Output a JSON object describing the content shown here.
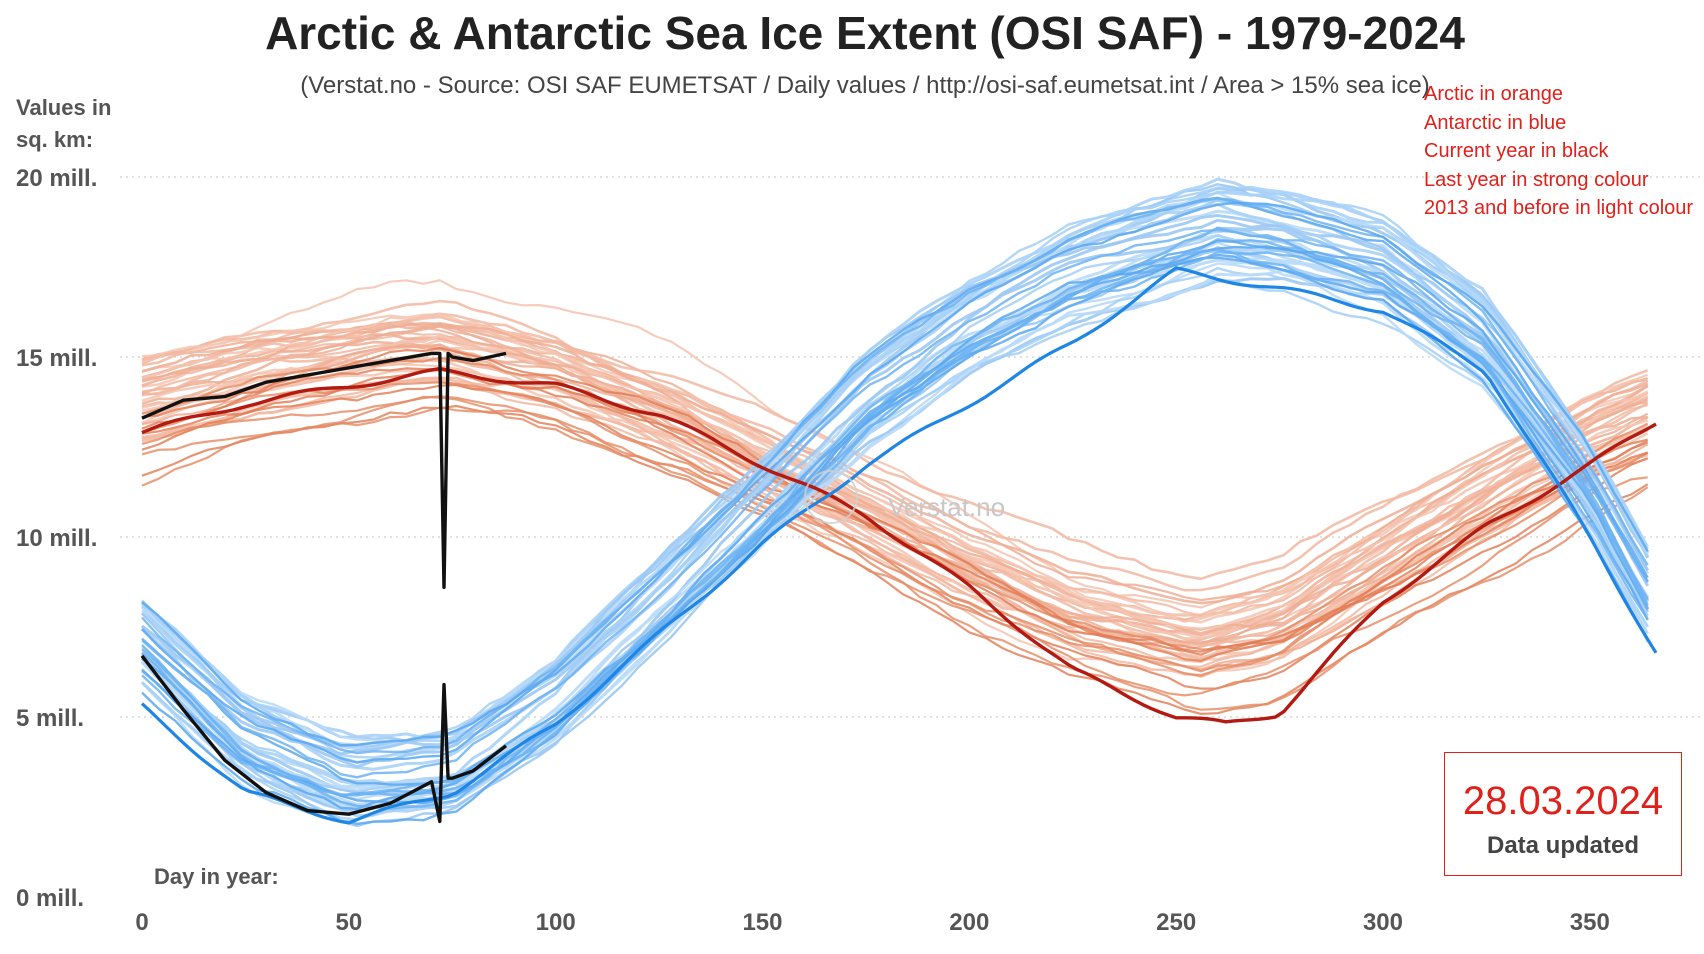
{
  "title": "Arctic & Antarctic Sea Ice Extent (OSI SAF) - 1979-2024",
  "subtitle": "(Verstat.no - Source: OSI SAF EUMETSAT / Daily values / http://osi-saf.eumetsat.int / Area > 15% sea ice)",
  "ylabel": "Values in sq. km:",
  "xlabel": "Day in year:",
  "legend": [
    "Arctic in orange",
    "Antarctic in blue",
    "Current year in black",
    "Last year in strong colour",
    "2013 and before in light colour"
  ],
  "watermark": "Verstat.no",
  "update": {
    "date": "28.03.2024",
    "label": "Data updated"
  },
  "colors": {
    "arctic_light": "#f2b9a2",
    "arctic_strong": "#e27a52",
    "arctic_last_year": "#b31b12",
    "antarctic_light": "#a9d1f7",
    "antarctic_strong": "#5aa8f0",
    "antarctic_last_year": "#1f86e6",
    "current_year": "#111111",
    "legend_text": "#e0201a"
  },
  "chart_data": {
    "type": "line",
    "title": "Arctic & Antarctic Sea Ice Extent (OSI SAF) - 1979-2024",
    "xlabel": "Day in year:",
    "ylabel": "Values in sq. km:",
    "xlim": [
      0,
      366
    ],
    "ylim": [
      0,
      20
    ],
    "x_ticks": [
      0,
      50,
      100,
      150,
      200,
      250,
      300,
      350
    ],
    "y_ticks": [
      0,
      5,
      10,
      15,
      20
    ],
    "y_tick_labels": [
      "0 mill.",
      "5 mill.",
      "10 mill.",
      "15 mill.",
      "20 mill."
    ],
    "grid": "horizontal dotted",
    "legend_position": "top-right",
    "series": [
      {
        "name": "Arctic 2023",
        "x": [
          0,
          25,
          50,
          72,
          100,
          125,
          150,
          175,
          200,
          225,
          250,
          262,
          275,
          300,
          325,
          350,
          366
        ],
        "values": [
          12.9,
          13.7,
          14.2,
          14.6,
          14.2,
          13.4,
          12.0,
          10.6,
          8.6,
          6.3,
          5.0,
          4.8,
          5.1,
          8.2,
          10.3,
          12.0,
          13.2
        ]
      },
      {
        "name": "Arctic 2024",
        "x": [
          0,
          10,
          20,
          30,
          40,
          50,
          60,
          70,
          72,
          73,
          74,
          75,
          80,
          88
        ],
        "values": [
          13.3,
          13.8,
          13.9,
          14.3,
          14.5,
          14.7,
          14.9,
          15.1,
          15.1,
          8.6,
          15.1,
          15.0,
          14.9,
          15.1
        ]
      },
      {
        "name": "Antarctic 2023",
        "x": [
          0,
          25,
          50,
          75,
          100,
          125,
          150,
          175,
          200,
          225,
          250,
          275,
          300,
          325,
          350,
          366
        ],
        "values": [
          5.3,
          2.9,
          2.1,
          2.9,
          4.8,
          7.3,
          9.8,
          12.0,
          13.7,
          15.4,
          17.4,
          16.9,
          16.3,
          14.6,
          10.0,
          6.8
        ]
      },
      {
        "name": "Antarctic 2024",
        "x": [
          0,
          10,
          20,
          30,
          40,
          50,
          60,
          70,
          72,
          73,
          74,
          75,
          80,
          88
        ],
        "values": [
          6.7,
          5.2,
          3.8,
          2.9,
          2.4,
          2.3,
          2.6,
          3.2,
          2.1,
          5.9,
          3.3,
          3.3,
          3.5,
          4.2
        ]
      }
    ]
  }
}
